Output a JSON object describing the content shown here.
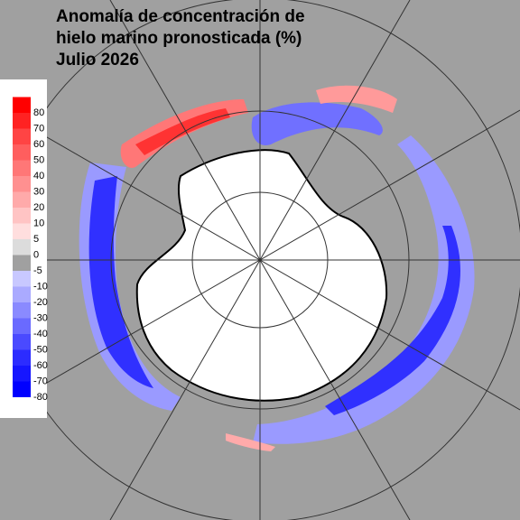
{
  "title": [
    "Anomalía de concentración de",
    "hielo marino pronosticada (%)",
    "Julio 2026"
  ],
  "colorbar": {
    "ticks": [
      80,
      70,
      60,
      50,
      40,
      30,
      20,
      10,
      5,
      0,
      -5,
      -10,
      -20,
      -30,
      -40,
      -50,
      -60,
      -70,
      -80
    ],
    "colors": [
      "#ff0000",
      "#ff2222",
      "#ff4444",
      "#ff5e5e",
      "#ff7777",
      "#ff9090",
      "#ffaaaa",
      "#ffc4c4",
      "#ffdede",
      "#dcdcdc",
      "#a0a0a0",
      "#c8c8ff",
      "#aaaaff",
      "#8a8aff",
      "#6a6aff",
      "#4a4aff",
      "#2c2cff",
      "#1616ff",
      "#0000ff"
    ]
  }
}
